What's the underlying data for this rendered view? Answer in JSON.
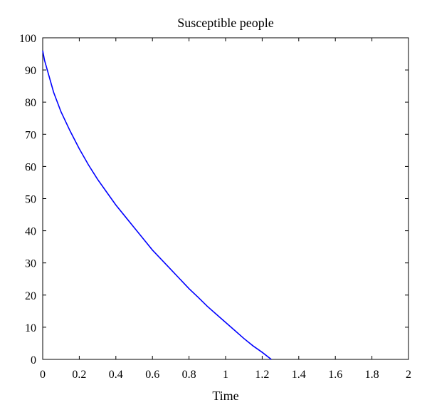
{
  "chart_data": {
    "type": "line",
    "title": "Susceptible people",
    "xlabel": "Time",
    "ylabel": "",
    "xlim": [
      0,
      2
    ],
    "ylim": [
      0,
      100
    ],
    "xticks": [
      "0",
      "0.2",
      "0.4",
      "0.6",
      "0.8",
      "1",
      "1.2",
      "1.4",
      "1.6",
      "1.8",
      "2"
    ],
    "yticks": [
      "0",
      "10",
      "20",
      "30",
      "40",
      "50",
      "60",
      "70",
      "80",
      "90",
      "100"
    ],
    "grid": false,
    "line_color": "#0000ff",
    "series": [
      {
        "x": [
          0,
          0.01,
          0.02,
          0.04,
          0.06,
          0.1,
          0.15,
          0.2,
          0.25,
          0.3,
          0.35,
          0.4,
          0.45,
          0.5,
          0.55,
          0.6,
          0.65,
          0.7,
          0.75,
          0.8,
          0.85,
          0.9,
          0.95,
          1.0,
          1.05,
          1.1,
          1.15,
          1.2,
          1.25
        ],
        "y": [
          96,
          93,
          91,
          87,
          83,
          77,
          71,
          65.5,
          60.5,
          56,
          52,
          48,
          44.5,
          41,
          37.5,
          34,
          31,
          28,
          25,
          22,
          19.3,
          16.5,
          14,
          11.5,
          9,
          6.5,
          4.2,
          2.2,
          0
        ]
      }
    ]
  }
}
